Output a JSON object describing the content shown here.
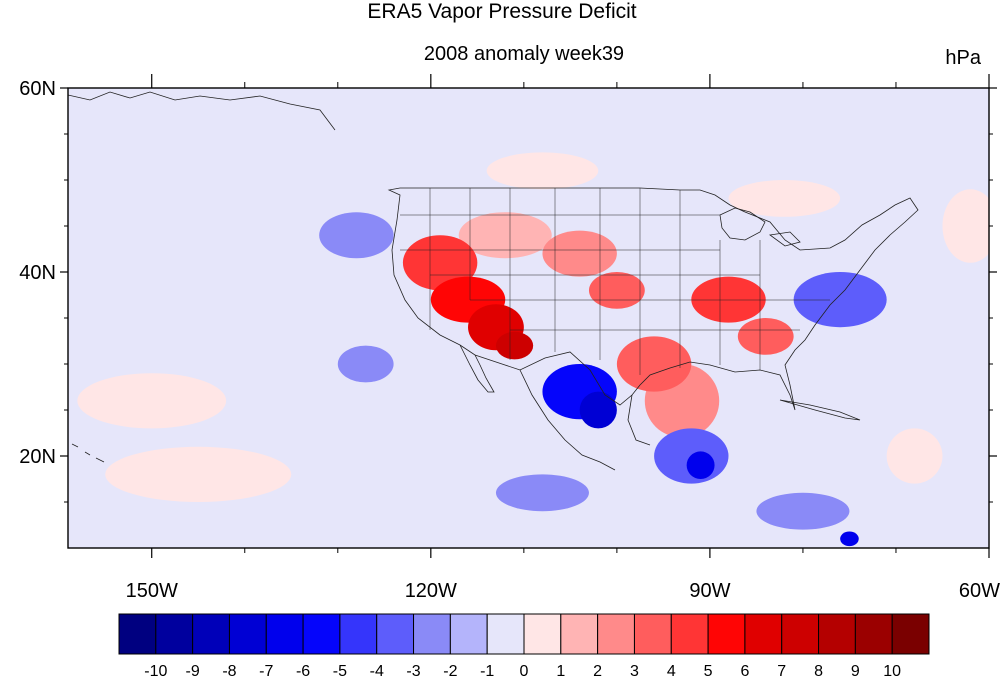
{
  "title": "ERA5 Vapor Pressure Deficit",
  "subtitle": "2008 anomaly week39",
  "units": "hPa",
  "map": {
    "projection": "cylindrical-equidistant",
    "lon_range": [
      -159,
      -60
    ],
    "lat_range": [
      10,
      60
    ],
    "background_color": "#e6e6fa",
    "lat_ticks": [
      {
        "value": 60,
        "label": "60N"
      },
      {
        "value": 40,
        "label": "40N"
      },
      {
        "value": 20,
        "label": "20N"
      }
    ],
    "lon_ticks": [
      {
        "value": -150,
        "label": "150W"
      },
      {
        "value": -120,
        "label": "120W"
      },
      {
        "value": -90,
        "label": "90W"
      },
      {
        "value": -60,
        "label": "60W"
      }
    ]
  },
  "colorbar": {
    "colors": [
      "#000080",
      "#00009e",
      "#0000b9",
      "#0000d4",
      "#0000ed",
      "#0505fb",
      "#3535fb",
      "#5d5dfb",
      "#8a8af7",
      "#b4b4fb",
      "#e6e6fa",
      "#ffe6e6",
      "#ffb4b4",
      "#ff8a8a",
      "#ff5d5d",
      "#ff3535",
      "#ff0505",
      "#e00000",
      "#cd0000",
      "#b40000",
      "#9b0000",
      "#7a0000"
    ],
    "labels": [
      "-10",
      "-9",
      "-8",
      "-7",
      "-6",
      "-5",
      "-4",
      "-3",
      "-2",
      "-1",
      "0",
      "1",
      "2",
      "3",
      "4",
      "5",
      "6",
      "7",
      "8",
      "9",
      "10"
    ]
  },
  "anomaly_regions": [
    {
      "lon": -128,
      "lat": 44,
      "rx": 4,
      "ry": 2.5,
      "value": -2
    },
    {
      "lon": -108,
      "lat": 51,
      "rx": 6,
      "ry": 2,
      "value": 1
    },
    {
      "lon": -82,
      "lat": 48,
      "rx": 6,
      "ry": 2,
      "value": 1
    },
    {
      "lon": -112,
      "lat": 44,
      "rx": 5,
      "ry": 2.5,
      "value": 2
    },
    {
      "lon": -104,
      "lat": 42,
      "rx": 4,
      "ry": 2.5,
      "value": 3
    },
    {
      "lon": -119,
      "lat": 41,
      "rx": 4,
      "ry": 3,
      "value": 5
    },
    {
      "lon": -116,
      "lat": 37,
      "rx": 4,
      "ry": 2.5,
      "value": 6
    },
    {
      "lon": -113,
      "lat": 34,
      "rx": 3,
      "ry": 2.5,
      "value": 7
    },
    {
      "lon": -111,
      "lat": 32,
      "rx": 2,
      "ry": 1.5,
      "value": 8
    },
    {
      "lon": -100,
      "lat": 38,
      "rx": 3,
      "ry": 2,
      "value": 4
    },
    {
      "lon": -96,
      "lat": 30,
      "rx": 4,
      "ry": 3,
      "value": 4
    },
    {
      "lon": -93,
      "lat": 26,
      "rx": 4,
      "ry": 4,
      "value": 3
    },
    {
      "lon": -88,
      "lat": 37,
      "rx": 4,
      "ry": 2.5,
      "value": 5
    },
    {
      "lon": -84,
      "lat": 33,
      "rx": 3,
      "ry": 2,
      "value": 4
    },
    {
      "lon": -104,
      "lat": 27,
      "rx": 4,
      "ry": 3,
      "value": -5
    },
    {
      "lon": -102,
      "lat": 25,
      "rx": 2,
      "ry": 2,
      "value": -7
    },
    {
      "lon": -76,
      "lat": 37,
      "rx": 5,
      "ry": 3,
      "value": -3
    },
    {
      "lon": -92,
      "lat": 20,
      "rx": 4,
      "ry": 3,
      "value": -3
    },
    {
      "lon": -91,
      "lat": 19,
      "rx": 1.5,
      "ry": 1.5,
      "value": -6
    },
    {
      "lon": -150,
      "lat": 26,
      "rx": 8,
      "ry": 3,
      "value": 1
    },
    {
      "lon": -145,
      "lat": 18,
      "rx": 10,
      "ry": 3,
      "value": 1
    },
    {
      "lon": -127,
      "lat": 30,
      "rx": 3,
      "ry": 2,
      "value": -2
    },
    {
      "lon": -108,
      "lat": 16,
      "rx": 5,
      "ry": 2,
      "value": -2
    },
    {
      "lon": -80,
      "lat": 14,
      "rx": 5,
      "ry": 2,
      "value": -2
    },
    {
      "lon": -68,
      "lat": 20,
      "rx": 3,
      "ry": 3,
      "value": 1
    },
    {
      "lon": -62,
      "lat": 45,
      "rx": 3,
      "ry": 4,
      "value": 1
    },
    {
      "lon": -75,
      "lat": 11,
      "rx": 1,
      "ry": 0.8,
      "value": -6
    }
  ]
}
